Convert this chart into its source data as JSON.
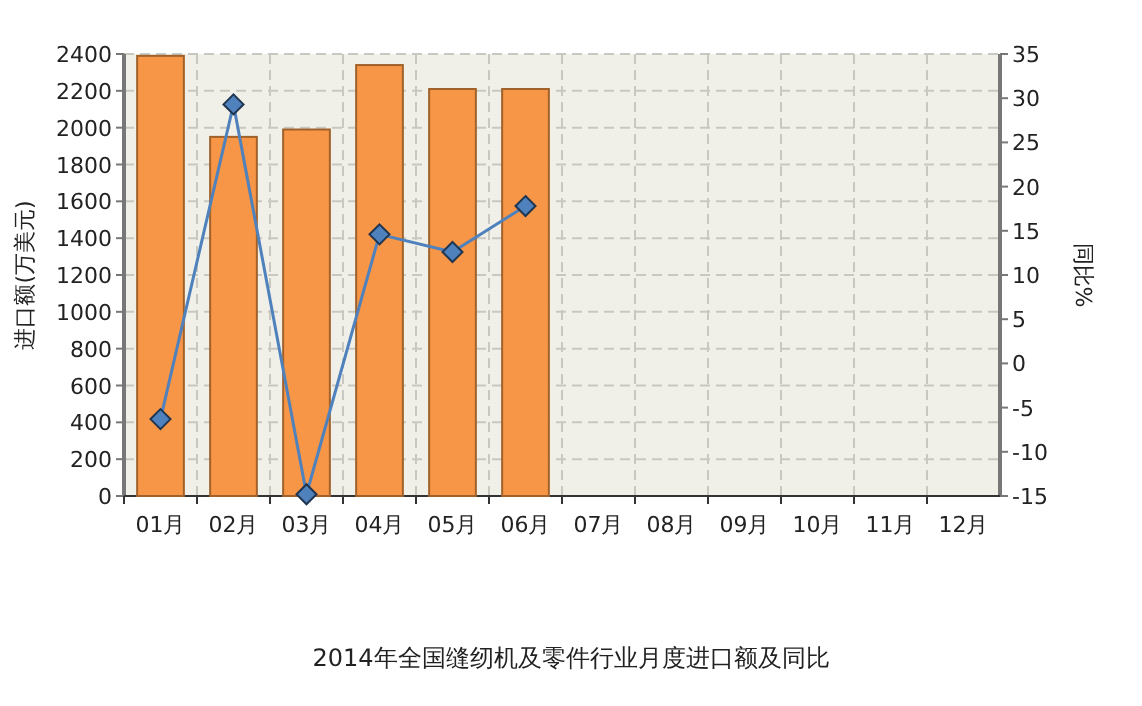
{
  "chart_data": {
    "type": "bar",
    "title": "2014年全国缝纫机及零件行业月度进口额及同比",
    "categories": [
      "01月",
      "02月",
      "03月",
      "04月",
      "05月",
      "06月",
      "07月",
      "08月",
      "09月",
      "10月",
      "11月",
      "12月"
    ],
    "series": [
      {
        "color": "#f79646",
        "values": [
          2390,
          1950,
          1990,
          2340,
          2210,
          2210,
          null,
          null,
          null,
          null,
          null,
          null
        ]
      },
      {
        "type": "line",
        "axis": "y2",
        "color": "#4f81bd",
        "values": [
          -6.3,
          29.3,
          -14.8,
          14.6,
          12.6,
          17.8,
          null,
          null,
          null,
          null,
          null,
          null
        ]
      }
    ],
    "ylabel": "进口额(万美元)",
    "y2label": "同比%",
    "ylim": [
      0,
      2400
    ],
    "yticks": [
      0,
      200,
      400,
      600,
      800,
      1000,
      1200,
      1400,
      1600,
      1800,
      2000,
      2200,
      2400
    ],
    "y2lim": [
      -15,
      35
    ],
    "y2ticks": [
      -15,
      -10,
      -5,
      0,
      5,
      10,
      15,
      20,
      25,
      30,
      35
    ],
    "grid": true,
    "marker": "diamond",
    "line_style": "solid"
  }
}
